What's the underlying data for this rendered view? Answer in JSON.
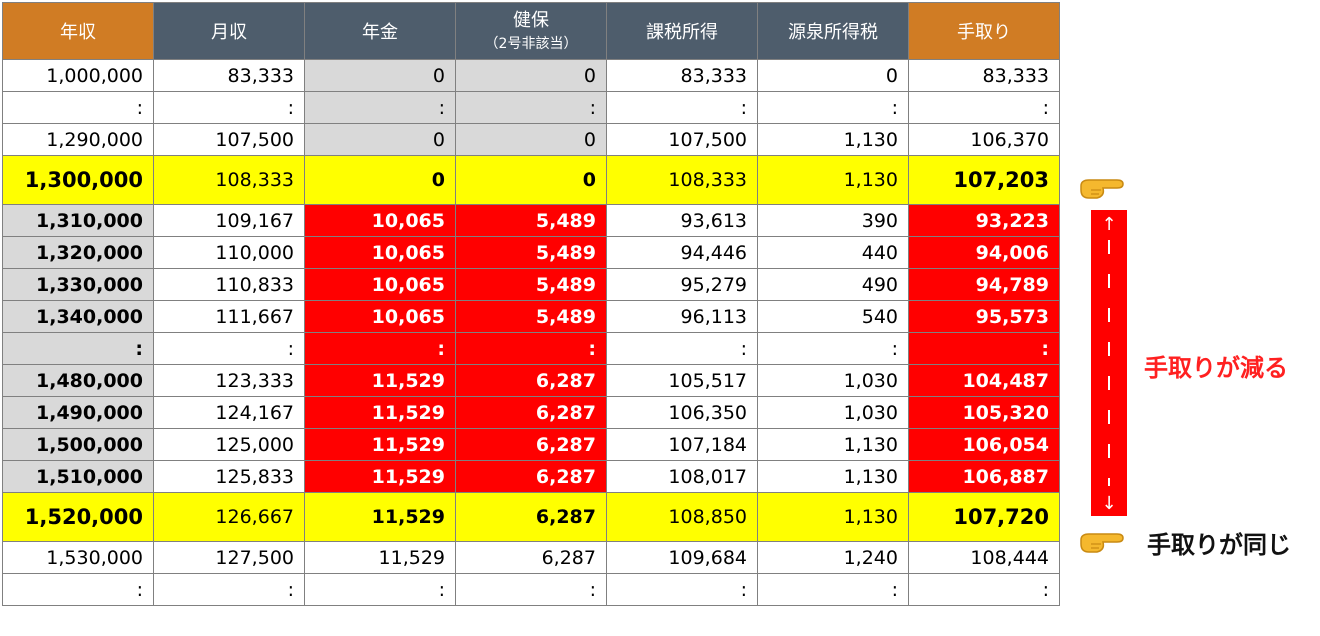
{
  "headers": {
    "annual": "年収",
    "monthly": "月収",
    "pension": "年金",
    "health": "健保",
    "health_sub": "（2号非該当）",
    "taxable": "課税所得",
    "withholding": "源泉所得税",
    "takehome": "手取り"
  },
  "rows": [
    {
      "kind": "normal",
      "annual": "1,000,000",
      "monthly": "83,333",
      "pension": "0",
      "health": "0",
      "taxable": "83,333",
      "withholding": "0",
      "takehome": "83,333"
    },
    {
      "kind": "dots",
      "annual": ":",
      "monthly": ":",
      "pension": ":",
      "health": ":",
      "taxable": ":",
      "withholding": ":",
      "takehome": ":"
    },
    {
      "kind": "normal",
      "annual": "1,290,000",
      "monthly": "107,500",
      "pension": "0",
      "health": "0",
      "taxable": "107,500",
      "withholding": "1,130",
      "takehome": "106,370"
    },
    {
      "kind": "highlight",
      "annual": "1,300,000",
      "monthly": "108,333",
      "pension": "0",
      "health": "0",
      "taxable": "108,333",
      "withholding": "1,130",
      "takehome": "107,203"
    },
    {
      "kind": "red",
      "annual": "1,310,000",
      "monthly": "109,167",
      "pension": "10,065",
      "health": "5,489",
      "taxable": "93,613",
      "withholding": "390",
      "takehome": "93,223"
    },
    {
      "kind": "red",
      "annual": "1,320,000",
      "monthly": "110,000",
      "pension": "10,065",
      "health": "5,489",
      "taxable": "94,446",
      "withholding": "440",
      "takehome": "94,006"
    },
    {
      "kind": "red",
      "annual": "1,330,000",
      "monthly": "110,833",
      "pension": "10,065",
      "health": "5,489",
      "taxable": "95,279",
      "withholding": "490",
      "takehome": "94,789"
    },
    {
      "kind": "red",
      "annual": "1,340,000",
      "monthly": "111,667",
      "pension": "10,065",
      "health": "5,489",
      "taxable": "96,113",
      "withholding": "540",
      "takehome": "95,573"
    },
    {
      "kind": "reddots",
      "annual": ":",
      "monthly": ":",
      "pension": ":",
      "health": ":",
      "taxable": ":",
      "withholding": ":",
      "takehome": ":"
    },
    {
      "kind": "red",
      "annual": "1,480,000",
      "monthly": "123,333",
      "pension": "11,529",
      "health": "6,287",
      "taxable": "105,517",
      "withholding": "1,030",
      "takehome": "104,487"
    },
    {
      "kind": "red",
      "annual": "1,490,000",
      "monthly": "124,167",
      "pension": "11,529",
      "health": "6,287",
      "taxable": "106,350",
      "withholding": "1,030",
      "takehome": "105,320"
    },
    {
      "kind": "red",
      "annual": "1,500,000",
      "monthly": "125,000",
      "pension": "11,529",
      "health": "6,287",
      "taxable": "107,184",
      "withholding": "1,130",
      "takehome": "106,054"
    },
    {
      "kind": "red",
      "annual": "1,510,000",
      "monthly": "125,833",
      "pension": "11,529",
      "health": "6,287",
      "taxable": "108,017",
      "withholding": "1,130",
      "takehome": "106,887"
    },
    {
      "kind": "highlight2",
      "annual": "1,520,000",
      "monthly": "126,667",
      "pension": "11,529",
      "health": "6,287",
      "taxable": "108,850",
      "withholding": "1,130",
      "takehome": "107,720"
    },
    {
      "kind": "plain",
      "annual": "1,530,000",
      "monthly": "127,500",
      "pension": "11,529",
      "health": "6,287",
      "taxable": "109,684",
      "withholding": "1,240",
      "takehome": "108,444"
    },
    {
      "kind": "plaindots",
      "annual": ":",
      "monthly": ":",
      "pension": ":",
      "health": ":",
      "taxable": ":",
      "withholding": ":",
      "takehome": ":"
    }
  ],
  "annotations": {
    "decrease": "手取りが減る",
    "same": "手取りが同じ",
    "up_arrow": "↑",
    "down_arrow": "↓",
    "hand_icon": "pointing-hand-icon"
  },
  "colors": {
    "header_orange": "#d07c24",
    "header_slate": "#4e5d6c",
    "highlight_yellow": "#ffff00",
    "alert_red": "#ff0000",
    "grey": "#d9d9d9"
  }
}
